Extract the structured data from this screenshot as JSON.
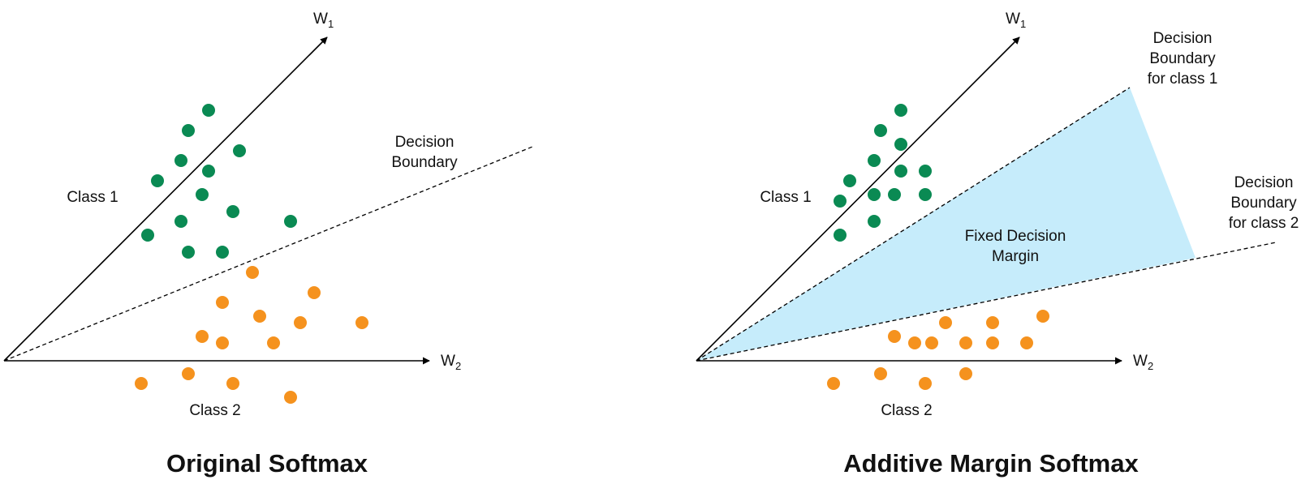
{
  "colors": {
    "class1": "#0a8a53",
    "class2": "#f5921e",
    "margin": "#c6ecfb",
    "ink": "#000000"
  },
  "panels": [
    {
      "title": "Original Softmax",
      "axis_w1": {
        "main": "W",
        "sub": "1"
      },
      "axis_w2": {
        "main": "W",
        "sub": "2"
      },
      "class1_label": "Class 1",
      "class2_label": "Class 2",
      "boundary_label": [
        "Decision",
        "Boundary"
      ]
    },
    {
      "title": "Additive Margin Softmax",
      "axis_w1": {
        "main": "W",
        "sub": "1"
      },
      "axis_w2": {
        "main": "W",
        "sub": "2"
      },
      "class1_label": "Class 1",
      "class2_label": "Class 2",
      "boundary1_label": [
        "Decision",
        "Boundary",
        "for class 1"
      ],
      "boundary2_label": [
        "Decision",
        "Boundary",
        "for class 2"
      ],
      "margin_label": [
        "Fixed Decision",
        "Margin"
      ]
    }
  ]
}
